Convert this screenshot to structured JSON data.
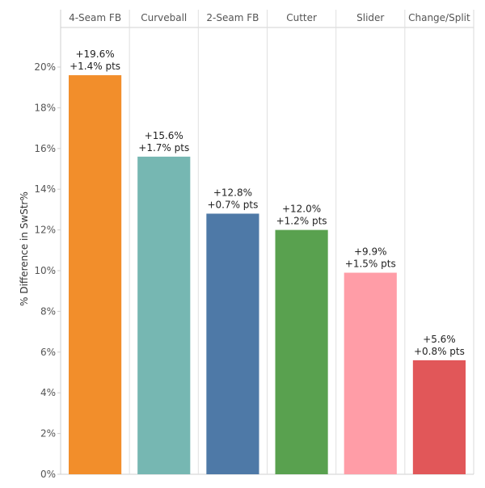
{
  "chart_data": {
    "type": "bar",
    "title": "",
    "xlabel": "",
    "ylabel": "% Difference in SwStr%",
    "ylim": [
      0,
      21.5
    ],
    "y_ticks": [
      0,
      2,
      4,
      6,
      8,
      10,
      12,
      14,
      16,
      18,
      20
    ],
    "y_tick_labels": [
      "0%",
      "2%",
      "4%",
      "6%",
      "8%",
      "10%",
      "12%",
      "14%",
      "16%",
      "18%",
      "20%"
    ],
    "categories": [
      "4-Seam FB",
      "Curveball",
      "2-Seam FB",
      "Cutter",
      "Slider",
      "Change/Split"
    ],
    "values": [
      19.6,
      15.6,
      12.8,
      12.0,
      9.9,
      5.6
    ],
    "data_labels": [
      "+19.6%",
      "+15.6%",
      "+12.8%",
      "+12.0%",
      "+9.9%",
      "+5.6%"
    ],
    "secondary_labels": [
      "+1.4% pts",
      "+1.7% pts",
      "+0.7% pts",
      "+1.2% pts",
      "+1.5% pts",
      "+0.8% pts"
    ],
    "colors": [
      "#f28e2b",
      "#76b7b2",
      "#4e79a7",
      "#59a14f",
      "#ff9da7",
      "#e15759"
    ],
    "grid": "vertical-panel-dividers",
    "legend": "none"
  }
}
